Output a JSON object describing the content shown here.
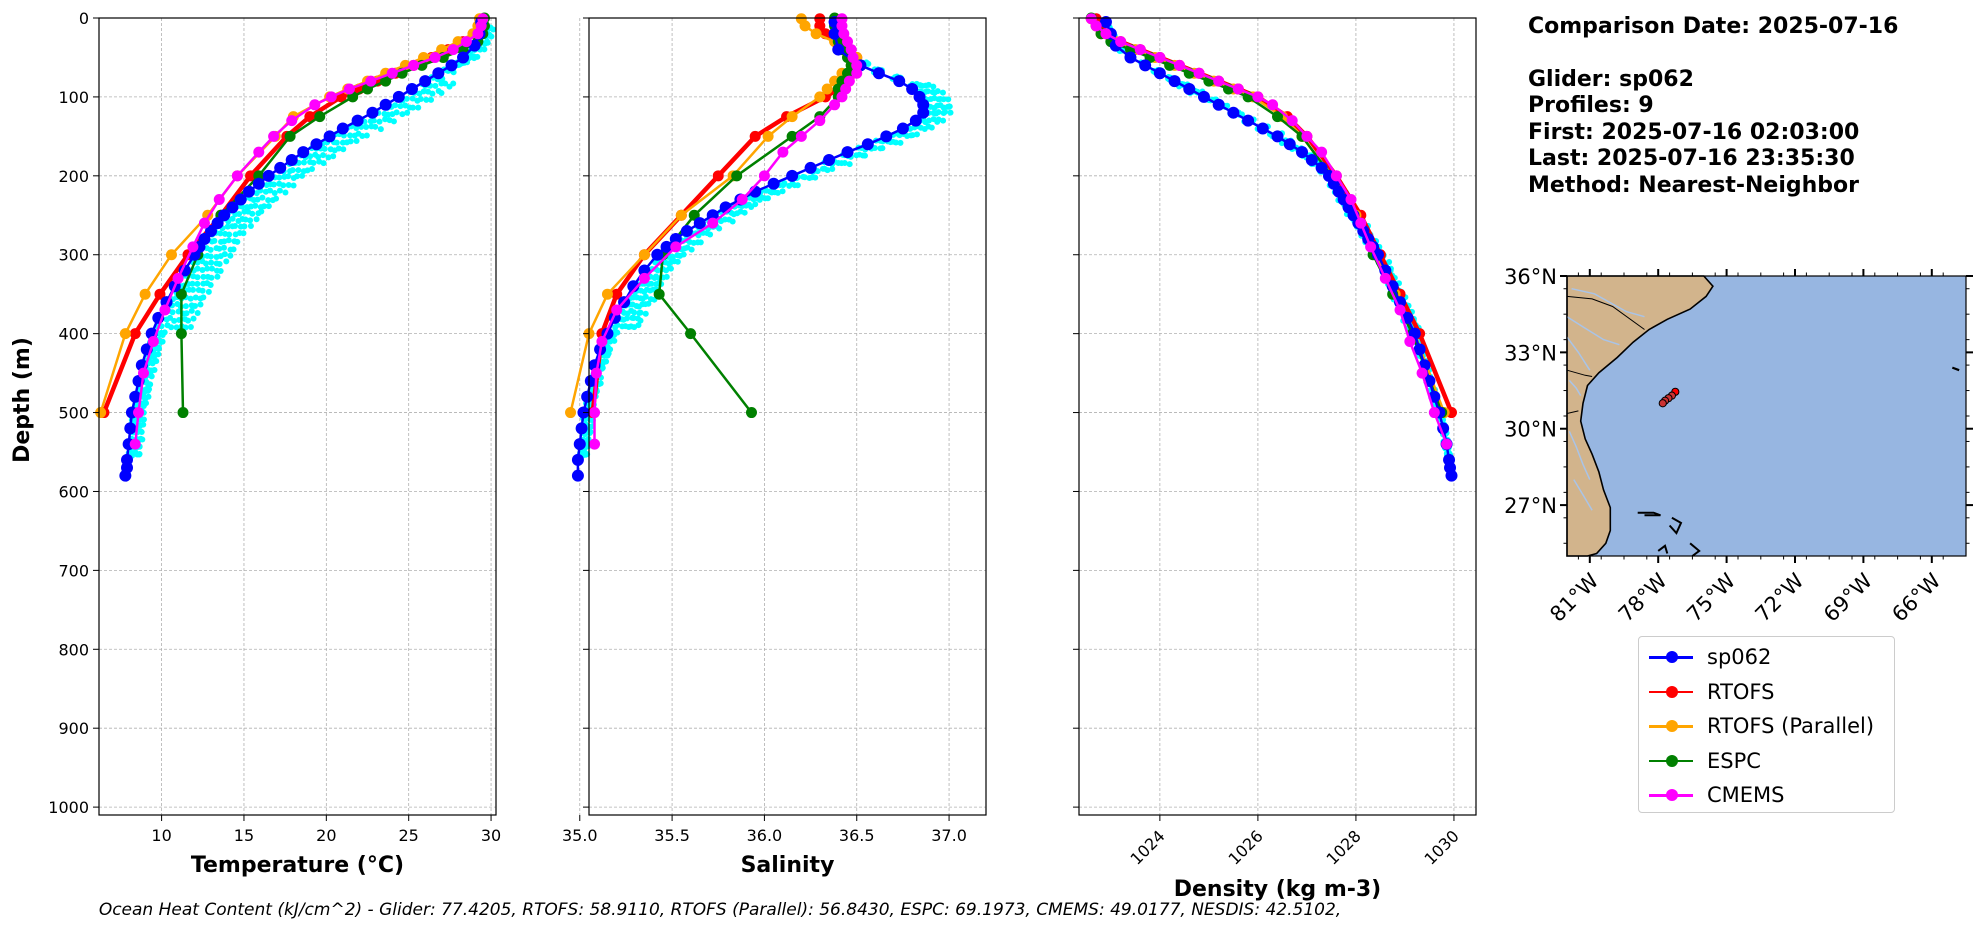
{
  "info": {
    "comparison_date": "Comparison Date: 2025-07-16",
    "glider": "Glider: sp062",
    "profiles": "Profiles: 9",
    "first": "First: 2025-07-16 02:03:00",
    "last": "Last: 2025-07-16 23:35:30",
    "method": "Method: Nearest-Neighbor"
  },
  "footer": "Ocean Heat Content (kJ/cm^2) - Glider: 77.4205,  RTOFS: 58.9110,  RTOFS (Parallel): 56.8430,  ESPC: 69.1973,  CMEMS: 49.0177,  NESDIS: 42.5102,",
  "colors": {
    "glider": "#0000ff",
    "rtofs": "#ff0000",
    "rtofs_parallel": "#ffa500",
    "espc": "#008000",
    "cmems": "#ff00ff",
    "glider_profiles": "#00ffff",
    "land": "#d2b48c",
    "ocean": "#97b6e1",
    "rivers": "#a9c4e8"
  },
  "legend": [
    {
      "label": "sp062",
      "color": "#0000ff"
    },
    {
      "label": "RTOFS",
      "color": "#ff0000"
    },
    {
      "label": "RTOFS (Parallel)",
      "color": "#ffa500"
    },
    {
      "label": "ESPC",
      "color": "#008000"
    },
    {
      "label": "CMEMS",
      "color": "#ff00ff"
    }
  ],
  "chart_data": [
    {
      "type": "line",
      "xlabel": "Temperature (°C)",
      "ylabel": "Depth (m)",
      "xlim": [
        6.2,
        30.3
      ],
      "ylim": [
        1010,
        0
      ],
      "xticks": [
        10,
        15,
        20,
        25,
        30
      ],
      "yticks": [
        0,
        100,
        200,
        300,
        400,
        500,
        600,
        700,
        800,
        900,
        1000
      ],
      "grid": true,
      "series": [
        {
          "name": "sp062",
          "marker_size": "large",
          "depth": [
            5,
            20,
            35,
            50,
            60,
            70,
            80,
            90,
            100,
            110,
            120,
            130,
            140,
            150,
            160,
            170,
            180,
            190,
            200,
            210,
            220,
            230,
            240,
            250,
            260,
            270,
            280,
            290,
            300,
            320,
            340,
            360,
            380,
            400,
            420,
            440,
            460,
            480,
            500,
            520,
            540,
            560,
            570,
            580
          ],
          "values": [
            29.4,
            29.3,
            29.0,
            28.3,
            27.6,
            26.8,
            26.0,
            25.2,
            24.4,
            23.6,
            22.8,
            21.9,
            21.0,
            20.2,
            19.4,
            18.6,
            17.9,
            17.2,
            16.5,
            15.9,
            15.3,
            14.8,
            14.3,
            13.8,
            13.4,
            13.0,
            12.6,
            12.3,
            12.0,
            11.4,
            10.8,
            10.3,
            9.8,
            9.4,
            9.1,
            8.8,
            8.6,
            8.4,
            8.2,
            8.1,
            8.0,
            7.9,
            7.9,
            7.8
          ]
        },
        {
          "name": "RTOFS",
          "marker_size": "medium",
          "depth": [
            1,
            10,
            20,
            30,
            40,
            50,
            60,
            70,
            80,
            90,
            100,
            125,
            150,
            200,
            250,
            300,
            350,
            400,
            500
          ],
          "values": [
            29.5,
            29.4,
            29.1,
            28.3,
            27.4,
            26.4,
            25.3,
            24.2,
            23.1,
            22.0,
            20.9,
            19.0,
            17.6,
            15.4,
            13.6,
            11.6,
            9.9,
            8.4,
            6.5
          ]
        },
        {
          "name": "RTOFS (Parallel)",
          "marker_size": "medium",
          "depth": [
            1,
            10,
            20,
            30,
            40,
            50,
            60,
            70,
            80,
            90,
            100,
            125,
            150,
            200,
            250,
            300,
            350,
            400,
            500
          ],
          "values": [
            29.3,
            29.2,
            28.9,
            28.0,
            27.0,
            25.9,
            24.8,
            23.6,
            22.5,
            21.3,
            20.2,
            18.0,
            16.9,
            14.6,
            12.8,
            10.6,
            9.0,
            7.8,
            6.3
          ]
        },
        {
          "name": "ESPC",
          "marker_size": "medium",
          "depth": [
            0,
            10,
            20,
            30,
            40,
            50,
            60,
            70,
            80,
            90,
            100,
            125,
            150,
            200,
            250,
            300,
            350,
            400,
            500
          ],
          "values": [
            29.6,
            29.6,
            29.5,
            29.2,
            28.3,
            27.1,
            25.8,
            24.6,
            23.6,
            22.5,
            21.6,
            19.6,
            17.8,
            15.9,
            13.6,
            12.2,
            11.2,
            11.2,
            11.3
          ]
        },
        {
          "name": "CMEMS",
          "marker_size": "medium",
          "depth": [
            1,
            10,
            20,
            30,
            40,
            50,
            60,
            70,
            80,
            90,
            100,
            110,
            130,
            150,
            170,
            200,
            230,
            260,
            290,
            330,
            370,
            410,
            450,
            500,
            540
          ],
          "values": [
            29.5,
            29.4,
            29.2,
            28.5,
            27.7,
            26.6,
            25.3,
            24.0,
            22.7,
            21.4,
            20.3,
            19.3,
            17.9,
            16.8,
            15.9,
            14.6,
            13.5,
            12.6,
            11.9,
            11.0,
            10.2,
            9.5,
            8.9,
            8.6,
            8.4
          ]
        }
      ]
    },
    {
      "type": "line",
      "xlabel": "Salinity",
      "xlim": [
        35.05,
        37.2
      ],
      "ylim": [
        1010,
        0
      ],
      "xticks": [
        "35.0",
        "35.5",
        "36.0",
        "36.5",
        "37.0"
      ],
      "grid": true,
      "series": [
        {
          "name": "sp062",
          "marker_size": "large",
          "depth": [
            5,
            20,
            40,
            60,
            70,
            80,
            90,
            100,
            110,
            120,
            130,
            140,
            150,
            160,
            170,
            180,
            190,
            200,
            210,
            220,
            230,
            240,
            250,
            260,
            270,
            280,
            290,
            300,
            320,
            340,
            360,
            380,
            400,
            420,
            440,
            460,
            480,
            500,
            520,
            540,
            560,
            580
          ],
          "values": [
            36.38,
            36.38,
            36.4,
            36.52,
            36.62,
            36.73,
            36.8,
            36.84,
            36.86,
            36.86,
            36.82,
            36.75,
            36.66,
            36.56,
            36.45,
            36.35,
            36.25,
            36.15,
            36.05,
            35.95,
            35.87,
            35.79,
            35.72,
            35.65,
            35.58,
            35.52,
            35.47,
            35.42,
            35.35,
            35.29,
            35.24,
            35.19,
            35.15,
            35.11,
            35.08,
            35.06,
            35.04,
            35.02,
            35.01,
            35.0,
            34.99,
            34.99
          ]
        },
        {
          "name": "RTOFS",
          "marker_size": "medium",
          "depth": [
            1,
            10,
            20,
            30,
            40,
            50,
            60,
            70,
            80,
            90,
            100,
            125,
            150,
            200,
            250,
            300,
            350,
            400,
            500
          ],
          "values": [
            36.3,
            36.3,
            36.33,
            36.4,
            36.45,
            36.5,
            36.52,
            36.48,
            36.45,
            36.4,
            36.33,
            36.12,
            35.95,
            35.75,
            35.55,
            35.35,
            35.2,
            35.12,
            35.07
          ]
        },
        {
          "name": "RTOFS (Parallel)",
          "marker_size": "medium",
          "depth": [
            1,
            10,
            20,
            30,
            40,
            50,
            60,
            70,
            80,
            90,
            100,
            125,
            150,
            200,
            250,
            300,
            350,
            400,
            500
          ],
          "values": [
            36.2,
            36.22,
            36.28,
            36.38,
            36.45,
            36.5,
            36.47,
            36.42,
            36.38,
            36.34,
            36.3,
            36.15,
            36.02,
            35.83,
            35.55,
            35.35,
            35.15,
            35.05,
            34.95
          ]
        },
        {
          "name": "ESPC",
          "marker_size": "medium",
          "depth": [
            0,
            10,
            20,
            30,
            40,
            50,
            60,
            70,
            80,
            90,
            100,
            125,
            150,
            200,
            250,
            300,
            350,
            400,
            500
          ],
          "values": [
            36.38,
            36.38,
            36.38,
            36.4,
            36.42,
            36.45,
            36.47,
            36.45,
            36.42,
            36.4,
            36.4,
            36.3,
            36.15,
            35.85,
            35.62,
            35.45,
            35.43,
            35.6,
            35.93
          ]
        },
        {
          "name": "CMEMS",
          "marker_size": "medium",
          "depth": [
            1,
            10,
            20,
            30,
            40,
            50,
            60,
            70,
            80,
            90,
            100,
            110,
            130,
            150,
            170,
            200,
            230,
            260,
            290,
            330,
            370,
            410,
            450,
            500,
            540
          ],
          "values": [
            36.42,
            36.42,
            36.43,
            36.45,
            36.47,
            36.48,
            36.5,
            36.5,
            36.46,
            36.44,
            36.42,
            36.38,
            36.3,
            36.2,
            36.1,
            36.0,
            35.88,
            35.72,
            35.52,
            35.35,
            35.2,
            35.12,
            35.09,
            35.08,
            35.08
          ]
        }
      ]
    },
    {
      "type": "line",
      "xlabel": "Density (kg m-3)",
      "xlim": [
        1022.35,
        1030.45
      ],
      "ylim": [
        1010,
        0
      ],
      "xticks": [
        1024,
        1026,
        1028,
        1030
      ],
      "grid": true,
      "series": [
        {
          "name": "sp062",
          "marker_size": "large",
          "depth": [
            5,
            20,
            35,
            50,
            60,
            70,
            80,
            90,
            100,
            110,
            120,
            130,
            140,
            150,
            160,
            170,
            180,
            190,
            200,
            210,
            220,
            230,
            240,
            250,
            260,
            270,
            280,
            290,
            300,
            320,
            340,
            360,
            380,
            400,
            420,
            440,
            460,
            480,
            500,
            520,
            540,
            560,
            570,
            580
          ],
          "values": [
            1022.9,
            1023.0,
            1023.1,
            1023.4,
            1023.7,
            1024.0,
            1024.3,
            1024.6,
            1024.9,
            1025.2,
            1025.5,
            1025.8,
            1026.1,
            1026.4,
            1026.65,
            1026.9,
            1027.1,
            1027.3,
            1027.45,
            1027.55,
            1027.65,
            1027.75,
            1027.85,
            1027.95,
            1028.05,
            1028.15,
            1028.25,
            1028.35,
            1028.45,
            1028.6,
            1028.75,
            1028.9,
            1029.05,
            1029.2,
            1029.3,
            1029.4,
            1029.5,
            1029.6,
            1029.7,
            1029.78,
            1029.85,
            1029.9,
            1029.92,
            1029.95
          ]
        },
        {
          "name": "RTOFS",
          "marker_size": "medium",
          "depth": [
            1,
            10,
            20,
            30,
            40,
            50,
            60,
            70,
            80,
            90,
            100,
            125,
            150,
            200,
            250,
            300,
            350,
            400,
            500
          ],
          "values": [
            1022.7,
            1022.8,
            1022.9,
            1023.2,
            1023.6,
            1024.0,
            1024.4,
            1024.8,
            1025.2,
            1025.6,
            1026.0,
            1026.6,
            1027.0,
            1027.6,
            1028.1,
            1028.5,
            1028.9,
            1029.3,
            1029.95
          ]
        },
        {
          "name": "RTOFS (Parallel)",
          "marker_size": "medium",
          "depth": [
            1,
            10,
            20,
            30,
            40,
            50,
            60,
            70,
            80,
            90,
            100,
            125,
            150,
            200,
            250,
            300,
            350,
            400,
            500
          ],
          "values": [
            1022.6,
            1022.7,
            1022.8,
            1023.1,
            1023.5,
            1023.9,
            1024.3,
            1024.7,
            1025.1,
            1025.5,
            1025.9,
            1026.5,
            1026.9,
            1027.5,
            1028.0,
            1028.4,
            1028.8,
            1029.2,
            1029.8
          ]
        },
        {
          "name": "ESPC",
          "marker_size": "medium",
          "depth": [
            0,
            10,
            20,
            30,
            40,
            50,
            60,
            70,
            80,
            90,
            100,
            125,
            150,
            200,
            250,
            300,
            350,
            400,
            500
          ],
          "values": [
            1022.6,
            1022.7,
            1022.8,
            1023.0,
            1023.4,
            1023.8,
            1024.2,
            1024.6,
            1025.0,
            1025.4,
            1025.8,
            1026.4,
            1026.9,
            1027.5,
            1027.95,
            1028.35,
            1028.75,
            1029.15,
            1029.75
          ]
        },
        {
          "name": "CMEMS",
          "marker_size": "medium",
          "depth": [
            1,
            10,
            20,
            30,
            40,
            50,
            60,
            70,
            80,
            90,
            100,
            110,
            130,
            150,
            170,
            200,
            230,
            260,
            290,
            330,
            370,
            410,
            450,
            500,
            540
          ],
          "values": [
            1022.6,
            1022.7,
            1022.9,
            1023.2,
            1023.6,
            1024.0,
            1024.4,
            1024.8,
            1025.2,
            1025.6,
            1026.0,
            1026.3,
            1026.7,
            1027.0,
            1027.3,
            1027.6,
            1027.9,
            1028.1,
            1028.3,
            1028.6,
            1028.9,
            1029.1,
            1029.35,
            1029.6,
            1029.85
          ]
        }
      ]
    },
    {
      "type": "map",
      "lon_ticks": [
        "81°W",
        "78°W",
        "75°W",
        "72°W",
        "69°W",
        "66°W"
      ],
      "lat_ticks": [
        "36°N",
        "33°N",
        "30°N",
        "27°N"
      ],
      "lon_values": [
        -81,
        -78,
        -75,
        -72,
        -69,
        -66
      ],
      "lat_values": [
        36,
        33,
        30,
        27
      ],
      "lon_range": [
        -82.0,
        -64.5
      ],
      "lat_range": [
        25.0,
        36.0
      ],
      "glider_track": [
        [
          -77.25,
          31.45
        ],
        [
          -77.4,
          31.3
        ],
        [
          -77.55,
          31.2
        ],
        [
          -77.7,
          31.1
        ],
        [
          -77.8,
          31.0
        ]
      ]
    }
  ]
}
